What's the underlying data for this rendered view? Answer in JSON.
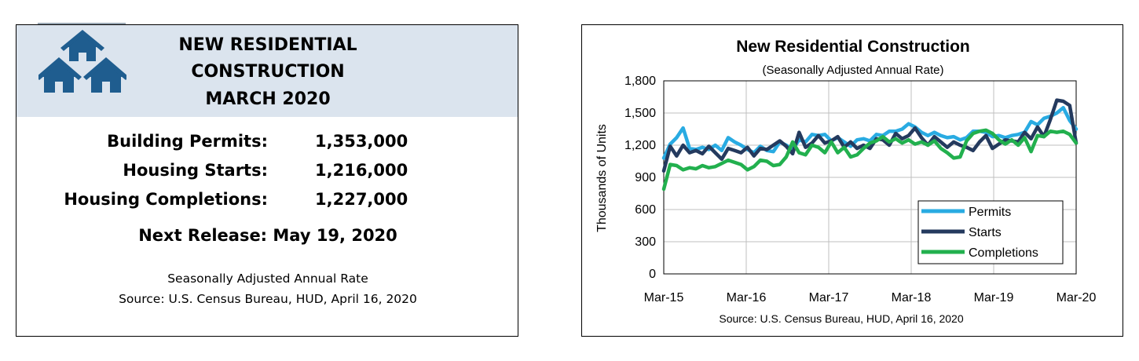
{
  "summary": {
    "title_lines": [
      "NEW RESIDENTIAL",
      "CONSTRUCTION",
      "MARCH 2020"
    ],
    "stats": [
      {
        "label": "Building Permits:",
        "value": "1,353,000"
      },
      {
        "label": "Housing Starts:",
        "value": "1,216,000"
      },
      {
        "label": "Housing Completions:",
        "value": "1,227,000"
      }
    ],
    "next_release": "Next Release:  May 19, 2020",
    "footnote_rate": "Seasonally Adjusted Annual Rate",
    "footnote_source": "Source:  U.S. Census Bureau, HUD, April 16, 2020",
    "colors": {
      "header_bg": "#dbe4ee",
      "logo": "#1f5d8f"
    }
  },
  "chart_data": {
    "type": "line",
    "title": "New Residential Construction",
    "subtitle": "(Seasonally Adjusted Annual Rate)",
    "ylabel": "Thousands of Units",
    "xlabel": "",
    "source": "Source:  U.S. Census Bureau, HUD, April 16, 2020",
    "ylim": [
      0,
      1800
    ],
    "yticks": [
      0,
      300,
      600,
      900,
      1200,
      1500,
      1800
    ],
    "ytick_labels": [
      "0",
      "300",
      "600",
      "900",
      "1,200",
      "1,500",
      "1,800"
    ],
    "xtick_labels": [
      "Mar-15",
      "Mar-16",
      "Mar-17",
      "Mar-18",
      "Mar-19",
      "Mar-20"
    ],
    "grid": true,
    "legend_position": "bottom-right",
    "series": [
      {
        "name": "Permits",
        "color": "#29abe2",
        "values": [
          1080,
          1210,
          1270,
          1360,
          1170,
          1160,
          1180,
          1160,
          1200,
          1150,
          1270,
          1230,
          1200,
          1160,
          1130,
          1190,
          1150,
          1140,
          1230,
          1200,
          1160,
          1250,
          1230,
          1300,
          1290,
          1300,
          1240,
          1270,
          1230,
          1190,
          1250,
          1260,
          1240,
          1300,
          1290,
          1330,
          1330,
          1350,
          1400,
          1370,
          1320,
          1290,
          1320,
          1290,
          1270,
          1280,
          1250,
          1270,
          1330,
          1330,
          1320,
          1280,
          1290,
          1270,
          1290,
          1300,
          1320,
          1420,
          1390,
          1450,
          1470,
          1500,
          1550,
          1430,
          1350
        ]
      },
      {
        "name": "Starts",
        "color": "#243a5e",
        "values": [
          960,
          1190,
          1100,
          1200,
          1130,
          1150,
          1120,
          1190,
          1130,
          1070,
          1170,
          1150,
          1130,
          1180,
          1100,
          1170,
          1160,
          1200,
          1240,
          1190,
          1120,
          1320,
          1180,
          1220,
          1290,
          1220,
          1240,
          1280,
          1180,
          1230,
          1170,
          1200,
          1170,
          1260,
          1250,
          1200,
          1310,
          1260,
          1290,
          1360,
          1270,
          1200,
          1280,
          1230,
          1180,
          1230,
          1200,
          1180,
          1150,
          1230,
          1290,
          1170,
          1210,
          1250,
          1240,
          1230,
          1320,
          1260,
          1370,
          1280,
          1440,
          1620,
          1610,
          1570,
          1220
        ]
      },
      {
        "name": "Completions",
        "color": "#22b04e",
        "values": [
          790,
          1020,
          1010,
          970,
          990,
          980,
          1010,
          990,
          1000,
          1030,
          1060,
          1040,
          1020,
          970,
          1000,
          1060,
          1050,
          1010,
          1020,
          1090,
          1230,
          1130,
          1110,
          1200,
          1180,
          1130,
          1230,
          1130,
          1180,
          1090,
          1110,
          1170,
          1220,
          1240,
          1280,
          1230,
          1260,
          1220,
          1250,
          1210,
          1230,
          1200,
          1240,
          1170,
          1130,
          1080,
          1090,
          1240,
          1310,
          1330,
          1340,
          1310,
          1250,
          1210,
          1250,
          1200,
          1270,
          1140,
          1290,
          1280,
          1330,
          1320,
          1330,
          1300,
          1220
        ]
      }
    ]
  }
}
